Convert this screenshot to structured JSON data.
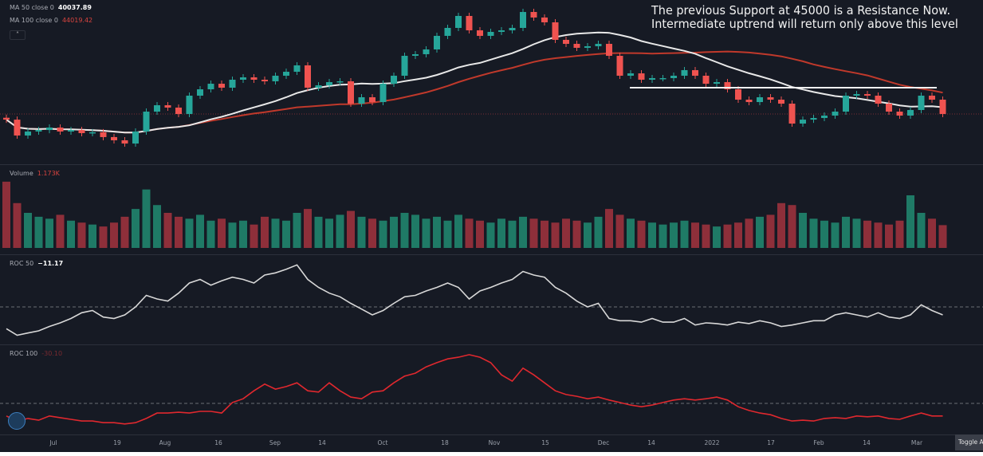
{
  "legend": {
    "ma50_label": "MA 50 close 0",
    "ma50_value": "40037.89",
    "ma100_label": "MA 100 close 0",
    "ma100_value": "44019.42",
    "volume_label": "Volume",
    "volume_value": "1.173K",
    "roc50_label": "ROC 50",
    "roc50_value": "−11.17",
    "roc100_label": "ROC 100",
    "roc100_value": "-30.10"
  },
  "annotation": {
    "line1": "The previous Support at 45000 is a Resistance Now.",
    "line2": "Intermediate uptrend will return only above this level"
  },
  "collapse_icon": "chevron-up-icon",
  "toggle_label": "Toggle A",
  "colors": {
    "up": "#26a69a",
    "down": "#ef5350",
    "ma50": "#e8e8e8",
    "ma100": "#c0392b",
    "roc50": "#d8d8d8",
    "roc100": "#e0282e",
    "background": "#161a24"
  },
  "chart_data": {
    "type": "candlestick",
    "time_ticks": [
      "Jul",
      "19",
      "Aug",
      "16",
      "Sep",
      "14",
      "Oct",
      "18",
      "Nov",
      "15",
      "Dec",
      "14",
      "2022",
      "17",
      "Feb",
      "14",
      "Mar"
    ],
    "support_resistance_level": 45000,
    "price_scale": "log",
    "closes": [
      38030,
      34980,
      35720,
      36010,
      36480,
      35720,
      36010,
      35420,
      35580,
      34690,
      34110,
      33530,
      35720,
      39670,
      41030,
      40520,
      39180,
      43150,
      44620,
      45950,
      45000,
      46930,
      47520,
      46930,
      46540,
      47930,
      48940,
      50620,
      45000,
      45570,
      46340,
      46540,
      41370,
      42790,
      41720,
      45950,
      47930,
      53230,
      53680,
      55050,
      59130,
      61660,
      65670,
      60880,
      59130,
      60380,
      60880,
      61660,
      67060,
      65130,
      63500,
      57900,
      56690,
      55520,
      55980,
      56690,
      53230,
      47930,
      48530,
      46930,
      47330,
      47330,
      47930,
      49360,
      47930,
      45950,
      46340,
      44620,
      42250,
      41720,
      42790,
      42250,
      41370,
      37250,
      38030,
      38360,
      38850,
      39670,
      43150,
      43510,
      43150,
      41370,
      39670,
      38850,
      40010,
      43150,
      42250,
      39180
    ],
    "ma_periods": [
      50,
      100
    ],
    "volume_k": [
      3.4,
      2.3,
      1.8,
      1.6,
      1.5,
      1.7,
      1.4,
      1.3,
      1.2,
      1.1,
      1.3,
      1.6,
      2.0,
      3.0,
      2.2,
      1.8,
      1.6,
      1.5,
      1.7,
      1.4,
      1.5,
      1.3,
      1.4,
      1.2,
      1.6,
      1.5,
      1.4,
      1.8,
      2.0,
      1.6,
      1.5,
      1.7,
      1.9,
      1.6,
      1.5,
      1.4,
      1.6,
      1.8,
      1.7,
      1.5,
      1.6,
      1.4,
      1.7,
      1.5,
      1.4,
      1.3,
      1.5,
      1.4,
      1.6,
      1.5,
      1.4,
      1.3,
      1.5,
      1.4,
      1.3,
      1.6,
      2.0,
      1.7,
      1.5,
      1.4,
      1.3,
      1.2,
      1.3,
      1.4,
      1.3,
      1.2,
      1.1,
      1.2,
      1.3,
      1.5,
      1.6,
      1.7,
      2.3,
      2.2,
      1.8,
      1.5,
      1.4,
      1.3,
      1.6,
      1.5,
      1.4,
      1.3,
      1.2,
      1.4,
      2.7,
      1.8,
      1.5,
      1.17
    ],
    "roc50": [
      -30,
      -39,
      -36,
      -33,
      -27,
      -22,
      -16,
      -8,
      -5,
      -14,
      -16,
      -11,
      0,
      16,
      11,
      8,
      19,
      33,
      38,
      30,
      36,
      41,
      38,
      33,
      44,
      47,
      52,
      58,
      38,
      27,
      19,
      14,
      5,
      -3,
      -11,
      -5,
      5,
      14,
      16,
      22,
      27,
      33,
      27,
      11,
      22,
      27,
      33,
      38,
      49,
      44,
      41,
      27,
      19,
      8,
      0,
      5,
      -16,
      -19,
      -19,
      -21,
      -16,
      -21,
      -21,
      -16,
      -25,
      -22,
      -23,
      -25,
      -21,
      -23,
      -19,
      -22,
      -27,
      -25,
      -22,
      -19,
      -19,
      -11,
      -8,
      -11,
      -14,
      -8,
      -14,
      -16,
      -11,
      3,
      -5,
      -11
    ],
    "roc100": [
      -30,
      -42,
      -36,
      -40,
      -30,
      -34,
      -38,
      -42,
      -42,
      -46,
      -46,
      -49,
      -46,
      -36,
      -23,
      -23,
      -21,
      -23,
      -19,
      -19,
      -23,
      2,
      11,
      30,
      46,
      34,
      40,
      49,
      30,
      27,
      49,
      30,
      15,
      11,
      27,
      30,
      49,
      65,
      72,
      87,
      97,
      106,
      110,
      116,
      110,
      97,
      68,
      53,
      84,
      68,
      49,
      30,
      21,
      17,
      11,
      15,
      8,
      2,
      -4,
      -8,
      -4,
      2,
      8,
      11,
      8,
      11,
      15,
      8,
      -8,
      -17,
      -23,
      -27,
      -36,
      -42,
      -40,
      -42,
      -36,
      -34,
      -36,
      -30,
      -32,
      -30,
      -36,
      -38,
      -30,
      -23,
      -30,
      -30
    ],
    "roc_zero_line": 0
  }
}
